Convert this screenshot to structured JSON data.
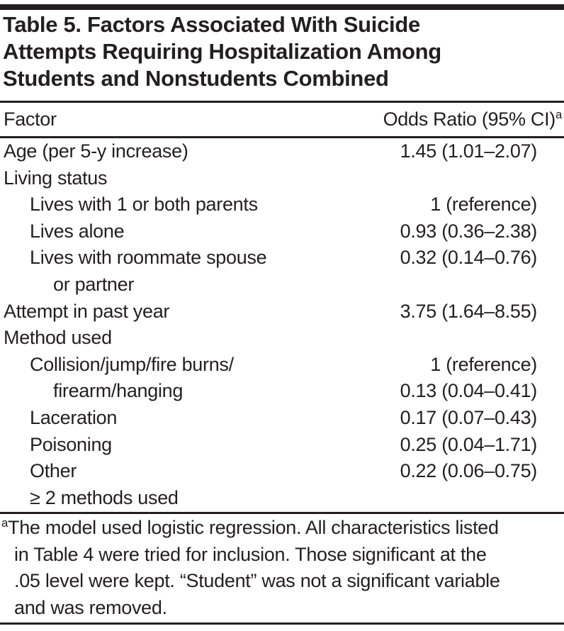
{
  "page": {
    "background": "#ffffff",
    "text_color": "#231f20",
    "rule_color": "#231f20"
  },
  "table": {
    "title": "Table 5. Factors Associated With Suicide Attempts Requiring Hospitalization Among Students and Nonstudents Combined",
    "title_lines": [
      "Table 5. Factors Associated With Suicide",
      "Attempts Requiring Hospitalization Among",
      "Students and Nonstudents Combined"
    ],
    "header": {
      "factor": "Factor",
      "odds_ratio": "Odds Ratio (95% CI)",
      "superscript": "a"
    },
    "rows": [
      {
        "label": "Age (per 5-y increase)",
        "indent": 0,
        "value": "1.45 (1.01–2.07)"
      },
      {
        "label": "Living status",
        "indent": 0,
        "value": ""
      },
      {
        "label": "Lives with 1 or both parents",
        "indent": 1,
        "value": "1 (reference)"
      },
      {
        "label": "Lives alone",
        "indent": 1,
        "value": "0.93 (0.36–2.38)"
      },
      {
        "label": "Lives with roommate spouse",
        "indent": 1,
        "value": "0.32 (0.14–0.76)"
      },
      {
        "label": "or partner",
        "indent": 2,
        "value": ""
      },
      {
        "label": "Attempt in past year",
        "indent": 0,
        "value": "3.75 (1.64–8.55)"
      },
      {
        "label": "Method used",
        "indent": 0,
        "value": ""
      },
      {
        "label": "Collision/jump/fire burns/",
        "indent": 1,
        "value": "1 (reference)"
      },
      {
        "label": "firearm/hanging",
        "indent": 2,
        "value": "0.13 (0.04–0.41)"
      },
      {
        "label": "Laceration",
        "indent": 1,
        "value": "0.17 (0.07–0.43)"
      },
      {
        "label": "Poisoning",
        "indent": 1,
        "value": "0.25 (0.04–1.71)"
      },
      {
        "label": "Other",
        "indent": 1,
        "value": "0.22 (0.06–0.75)"
      },
      {
        "label": "≥ 2 methods used",
        "indent": 1,
        "value": ""
      }
    ],
    "footnote": {
      "marker": "a",
      "text": "The model used logistic regression. All characteristics listed in Table 4 were tried for inclusion. Those significant at the .05 level were kept. “Student” was not a significant variable and was removed.",
      "lines": [
        "The model used logistic regression. All characteristics listed",
        "in Table 4 were tried for inclusion. Those significant at the",
        ".05 level were kept. “Student” was not a significant variable",
        "and was removed."
      ]
    }
  }
}
